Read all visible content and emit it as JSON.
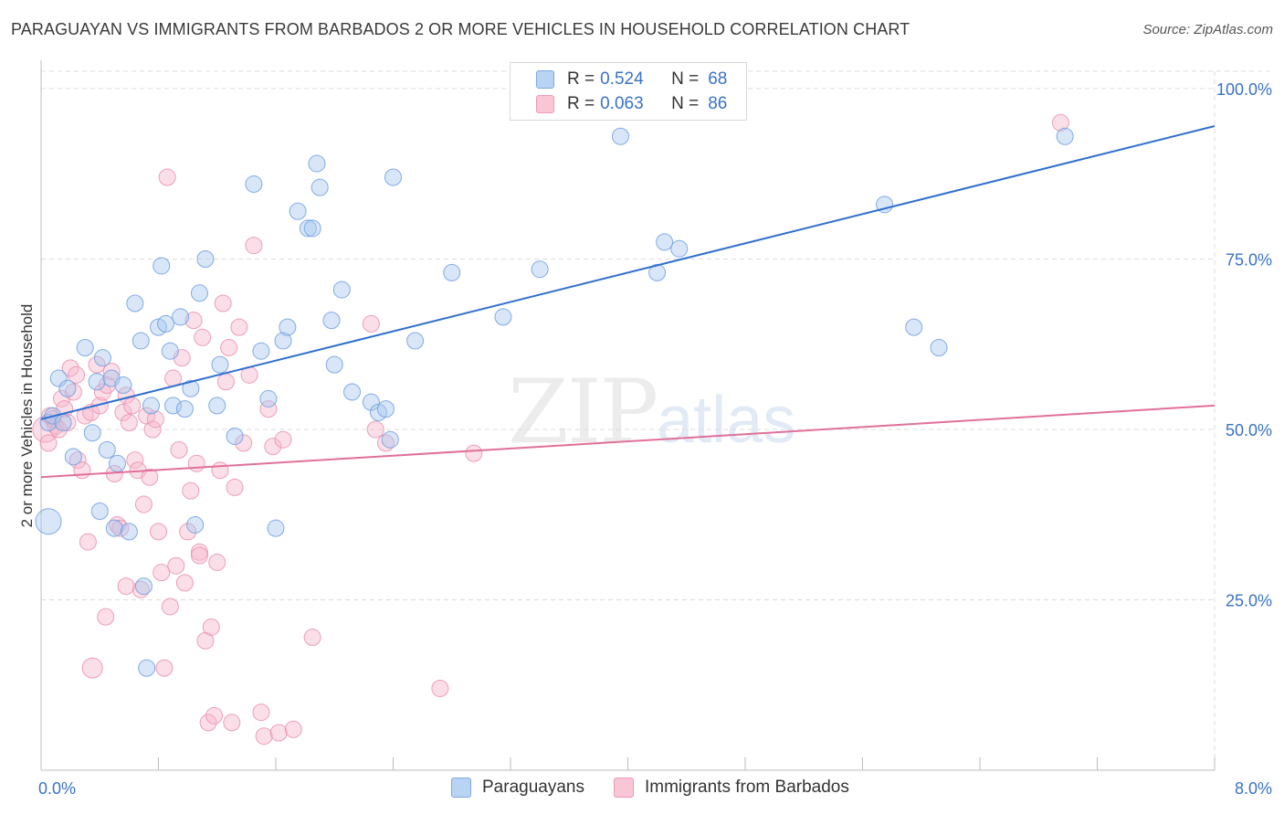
{
  "header": {
    "title": "PARAGUAYAN VS IMMIGRANTS FROM BARBADOS 2 OR MORE VEHICLES IN HOUSEHOLD CORRELATION CHART",
    "source": "Source: ZipAtlas.com"
  },
  "watermark": {
    "zip": "ZIP",
    "atlas": "atlas"
  },
  "legend_top": {
    "rows": [
      {
        "r_label": "R =",
        "r_value": "0.524",
        "n_label": "N =",
        "n_value": "68"
      },
      {
        "r_label": "R =",
        "r_value": "0.063",
        "n_label": "N =",
        "n_value": "86"
      }
    ]
  },
  "legend_bottom": {
    "series1": "Paraguayans",
    "series2": "Immigrants from Barbados"
  },
  "colors": {
    "blue_fill": "#a8c8f0",
    "blue_stroke": "#6f9fe0",
    "blue_line": "#2f6fcf",
    "pink_fill": "#f7b8cc",
    "pink_stroke": "#ea8fae",
    "pink_line": "#e0709a",
    "tick_label": "#3a72c6",
    "grid": "#dcdcdc"
  },
  "chart_data": {
    "type": "scatter",
    "title": "PARAGUAYAN VS IMMIGRANTS FROM BARBADOS 2 OR MORE VEHICLES IN HOUSEHOLD CORRELATION CHART",
    "xlabel": "",
    "ylabel": "2 or more Vehicles in Household",
    "xlim": [
      0,
      8
    ],
    "ylim": [
      0,
      100
    ],
    "x_tick_labels": [
      "0.0%",
      "8.0%"
    ],
    "y_ticks": [
      25,
      50,
      75,
      100
    ],
    "y_tick_labels": [
      "25.0%",
      "50.0%",
      "75.0%",
      "100.0%"
    ],
    "grid": true,
    "series": [
      {
        "name": "Paraguayans",
        "r": 0.524,
        "n": 68,
        "trend": {
          "x": [
            0,
            8
          ],
          "y": [
            51.5,
            94.5
          ]
        },
        "points": [
          [
            0.05,
            36.5,
            14
          ],
          [
            0.05,
            51,
            9
          ],
          [
            0.08,
            52,
            9
          ],
          [
            0.12,
            57.5,
            9
          ],
          [
            0.15,
            51,
            9
          ],
          [
            0.18,
            56,
            9
          ],
          [
            0.22,
            46,
            9
          ],
          [
            0.3,
            62,
            9
          ],
          [
            0.35,
            49.5,
            9
          ],
          [
            0.38,
            57,
            9
          ],
          [
            0.4,
            38,
            9
          ],
          [
            0.42,
            60.5,
            9
          ],
          [
            0.45,
            47,
            9
          ],
          [
            0.48,
            57.5,
            9
          ],
          [
            0.5,
            35.5,
            9
          ],
          [
            0.52,
            45,
            9
          ],
          [
            0.56,
            56.5,
            9
          ],
          [
            0.6,
            35,
            9
          ],
          [
            0.64,
            68.5,
            9
          ],
          [
            0.68,
            63,
            9
          ],
          [
            0.7,
            27,
            9
          ],
          [
            0.72,
            15,
            9
          ],
          [
            0.75,
            53.5,
            9
          ],
          [
            0.8,
            65,
            9
          ],
          [
            0.82,
            74,
            9
          ],
          [
            0.85,
            65.5,
            9
          ],
          [
            0.88,
            61.5,
            9
          ],
          [
            0.9,
            53.5,
            9
          ],
          [
            0.95,
            66.5,
            9
          ],
          [
            0.98,
            53,
            9
          ],
          [
            1.02,
            56,
            9
          ],
          [
            1.05,
            36,
            9
          ],
          [
            1.08,
            70,
            9
          ],
          [
            1.12,
            75,
            9
          ],
          [
            1.2,
            53.5,
            9
          ],
          [
            1.22,
            59.5,
            9
          ],
          [
            1.32,
            49,
            9
          ],
          [
            1.45,
            86,
            9
          ],
          [
            1.5,
            61.5,
            9
          ],
          [
            1.55,
            54.5,
            9
          ],
          [
            1.6,
            35.5,
            9
          ],
          [
            1.65,
            63,
            9
          ],
          [
            1.68,
            65,
            9
          ],
          [
            1.75,
            82,
            9
          ],
          [
            1.82,
            79.5,
            9
          ],
          [
            1.85,
            79.5,
            9
          ],
          [
            1.88,
            89,
            9
          ],
          [
            1.9,
            85.5,
            9
          ],
          [
            1.98,
            66,
            9
          ],
          [
            2.0,
            59.5,
            9
          ],
          [
            2.05,
            70.5,
            9
          ],
          [
            2.12,
            55.5,
            9
          ],
          [
            2.25,
            54,
            9
          ],
          [
            2.3,
            52.5,
            9
          ],
          [
            2.35,
            53,
            9
          ],
          [
            2.38,
            48.5,
            9
          ],
          [
            2.4,
            87,
            9
          ],
          [
            2.55,
            63,
            9
          ],
          [
            2.8,
            73,
            9
          ],
          [
            3.15,
            66.5,
            9
          ],
          [
            3.4,
            73.5,
            9
          ],
          [
            3.95,
            93,
            9
          ],
          [
            4.25,
            77.5,
            9
          ],
          [
            4.35,
            76.5,
            9
          ],
          [
            4.2,
            73,
            9
          ],
          [
            5.75,
            83,
            9
          ],
          [
            5.95,
            65,
            9
          ],
          [
            6.12,
            62,
            9
          ],
          [
            6.98,
            93,
            9
          ]
        ]
      },
      {
        "name": "Immigrants from Barbados",
        "r": 0.063,
        "n": 86,
        "trend": {
          "x": [
            0,
            8
          ],
          "y": [
            43,
            53.5
          ]
        },
        "points": [
          [
            0.03,
            50,
            14
          ],
          [
            0.05,
            48,
            9
          ],
          [
            0.06,
            52,
            9
          ],
          [
            0.08,
            51.5,
            9
          ],
          [
            0.1,
            50.5,
            9
          ],
          [
            0.12,
            50,
            9
          ],
          [
            0.14,
            54.5,
            9
          ],
          [
            0.16,
            53,
            9
          ],
          [
            0.18,
            51,
            9
          ],
          [
            0.2,
            59,
            9
          ],
          [
            0.22,
            55.5,
            9
          ],
          [
            0.24,
            58,
            9
          ],
          [
            0.25,
            45.5,
            9
          ],
          [
            0.28,
            44,
            9
          ],
          [
            0.3,
            52,
            9
          ],
          [
            0.32,
            33.5,
            9
          ],
          [
            0.34,
            52.5,
            9
          ],
          [
            0.35,
            15,
            11
          ],
          [
            0.38,
            59.5,
            9
          ],
          [
            0.4,
            53.5,
            9
          ],
          [
            0.42,
            55.5,
            9
          ],
          [
            0.45,
            56.5,
            9
          ],
          [
            0.48,
            58.5,
            9
          ],
          [
            0.5,
            43.5,
            9
          ],
          [
            0.52,
            36,
            9
          ],
          [
            0.54,
            35.5,
            9
          ],
          [
            0.56,
            52.5,
            9
          ],
          [
            0.58,
            55,
            9
          ],
          [
            0.6,
            51,
            9
          ],
          [
            0.62,
            53.5,
            9
          ],
          [
            0.64,
            45.5,
            9
          ],
          [
            0.66,
            44,
            9
          ],
          [
            0.68,
            26.5,
            9
          ],
          [
            0.7,
            39,
            9
          ],
          [
            0.72,
            52,
            9
          ],
          [
            0.74,
            43,
            9
          ],
          [
            0.76,
            50,
            9
          ],
          [
            0.78,
            51.5,
            9
          ],
          [
            0.8,
            35,
            9
          ],
          [
            0.82,
            29,
            9
          ],
          [
            0.84,
            15,
            9
          ],
          [
            0.86,
            87,
            9
          ],
          [
            0.88,
            24,
            9
          ],
          [
            0.9,
            57.5,
            9
          ],
          [
            0.92,
            30,
            9
          ],
          [
            0.94,
            47,
            9
          ],
          [
            0.96,
            60.5,
            9
          ],
          [
            0.98,
            27.5,
            9
          ],
          [
            1.0,
            35,
            9
          ],
          [
            1.02,
            41,
            9
          ],
          [
            1.04,
            66,
            9
          ],
          [
            1.06,
            45,
            9
          ],
          [
            1.08,
            32,
            9
          ],
          [
            1.1,
            63.5,
            9
          ],
          [
            1.12,
            19,
            9
          ],
          [
            1.14,
            7,
            9
          ],
          [
            1.16,
            21,
            9
          ],
          [
            1.18,
            8,
            9
          ],
          [
            1.2,
            30.5,
            9
          ],
          [
            1.22,
            44,
            9
          ],
          [
            1.24,
            68.5,
            9
          ],
          [
            1.26,
            57,
            9
          ],
          [
            1.28,
            62,
            9
          ],
          [
            1.3,
            7,
            9
          ],
          [
            1.32,
            41.5,
            9
          ],
          [
            1.35,
            65,
            9
          ],
          [
            1.38,
            48,
            9
          ],
          [
            1.42,
            58,
            9
          ],
          [
            1.45,
            77,
            9
          ],
          [
            1.5,
            8.5,
            9
          ],
          [
            1.52,
            5,
            9
          ],
          [
            1.55,
            53,
            9
          ],
          [
            1.58,
            47.5,
            9
          ],
          [
            1.62,
            5.5,
            9
          ],
          [
            1.65,
            48.5,
            9
          ],
          [
            1.72,
            6,
            9
          ],
          [
            1.85,
            19.5,
            9
          ],
          [
            2.25,
            65.5,
            9
          ],
          [
            2.28,
            50,
            9
          ],
          [
            2.35,
            48,
            9
          ],
          [
            2.72,
            12,
            9
          ],
          [
            2.95,
            46.5,
            9
          ],
          [
            6.95,
            95,
            9
          ],
          [
            0.58,
            27,
            9
          ],
          [
            0.44,
            22.5,
            9
          ],
          [
            1.08,
            31.5,
            9
          ]
        ]
      }
    ]
  }
}
